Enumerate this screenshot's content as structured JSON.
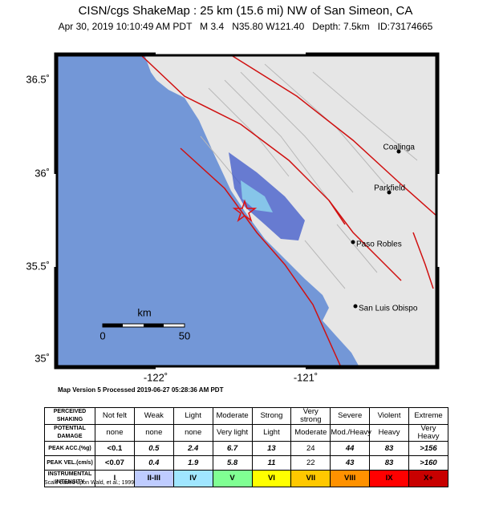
{
  "header": {
    "title": "CISN/cgs ShakeMap : 25 km (15.6 mi) NW of San Simeon, CA",
    "subtitle": "Apr 30, 2019 10:10:49 AM PDT   M 3.4   N35.80 W121.40   Depth: 7.5km   ID:73174665"
  },
  "map": {
    "lat_labels": [
      "36.5˚",
      "36˚",
      "35.5˚",
      "35˚"
    ],
    "lon_labels": [
      "-122˚",
      "-121˚"
    ],
    "cities": [
      "Coalinga",
      "Parkfield",
      "Paso Robles",
      "San Luis Obispo"
    ],
    "scale": {
      "unit": "km",
      "start": "0",
      "end": "50"
    }
  },
  "map_version": "Map Version 5 Processed 2019-06-27 05:28:36 AM PDT",
  "table": {
    "rows": [
      [
        "PERCEIVED SHAKING",
        "Not felt",
        "Weak",
        "Light",
        "Moderate",
        "Strong",
        "Very strong",
        "Severe",
        "Violent",
        "Extreme"
      ],
      [
        "POTENTIAL DAMAGE",
        "none",
        "none",
        "none",
        "Very light",
        "Light",
        "Moderate",
        "Mod./Heavy",
        "Heavy",
        "Very Heavy"
      ],
      [
        "PEAK ACC.(%g)",
        "<0.1",
        "0.5",
        "2.4",
        "6.7",
        "13",
        "24",
        "44",
        "83",
        ">156"
      ],
      [
        "PEAK VEL.(cm/s)",
        "<0.07",
        "0.4",
        "1.9",
        "5.8",
        "11",
        "22",
        "43",
        "83",
        ">160"
      ],
      [
        "INSTRUMENTAL INTENSITY",
        "I",
        "II-III",
        "IV",
        "V",
        "VI",
        "VII",
        "VIII",
        "IX",
        "X+"
      ]
    ]
  },
  "footer": "Scale based upon Wald, et al.; 1999"
}
